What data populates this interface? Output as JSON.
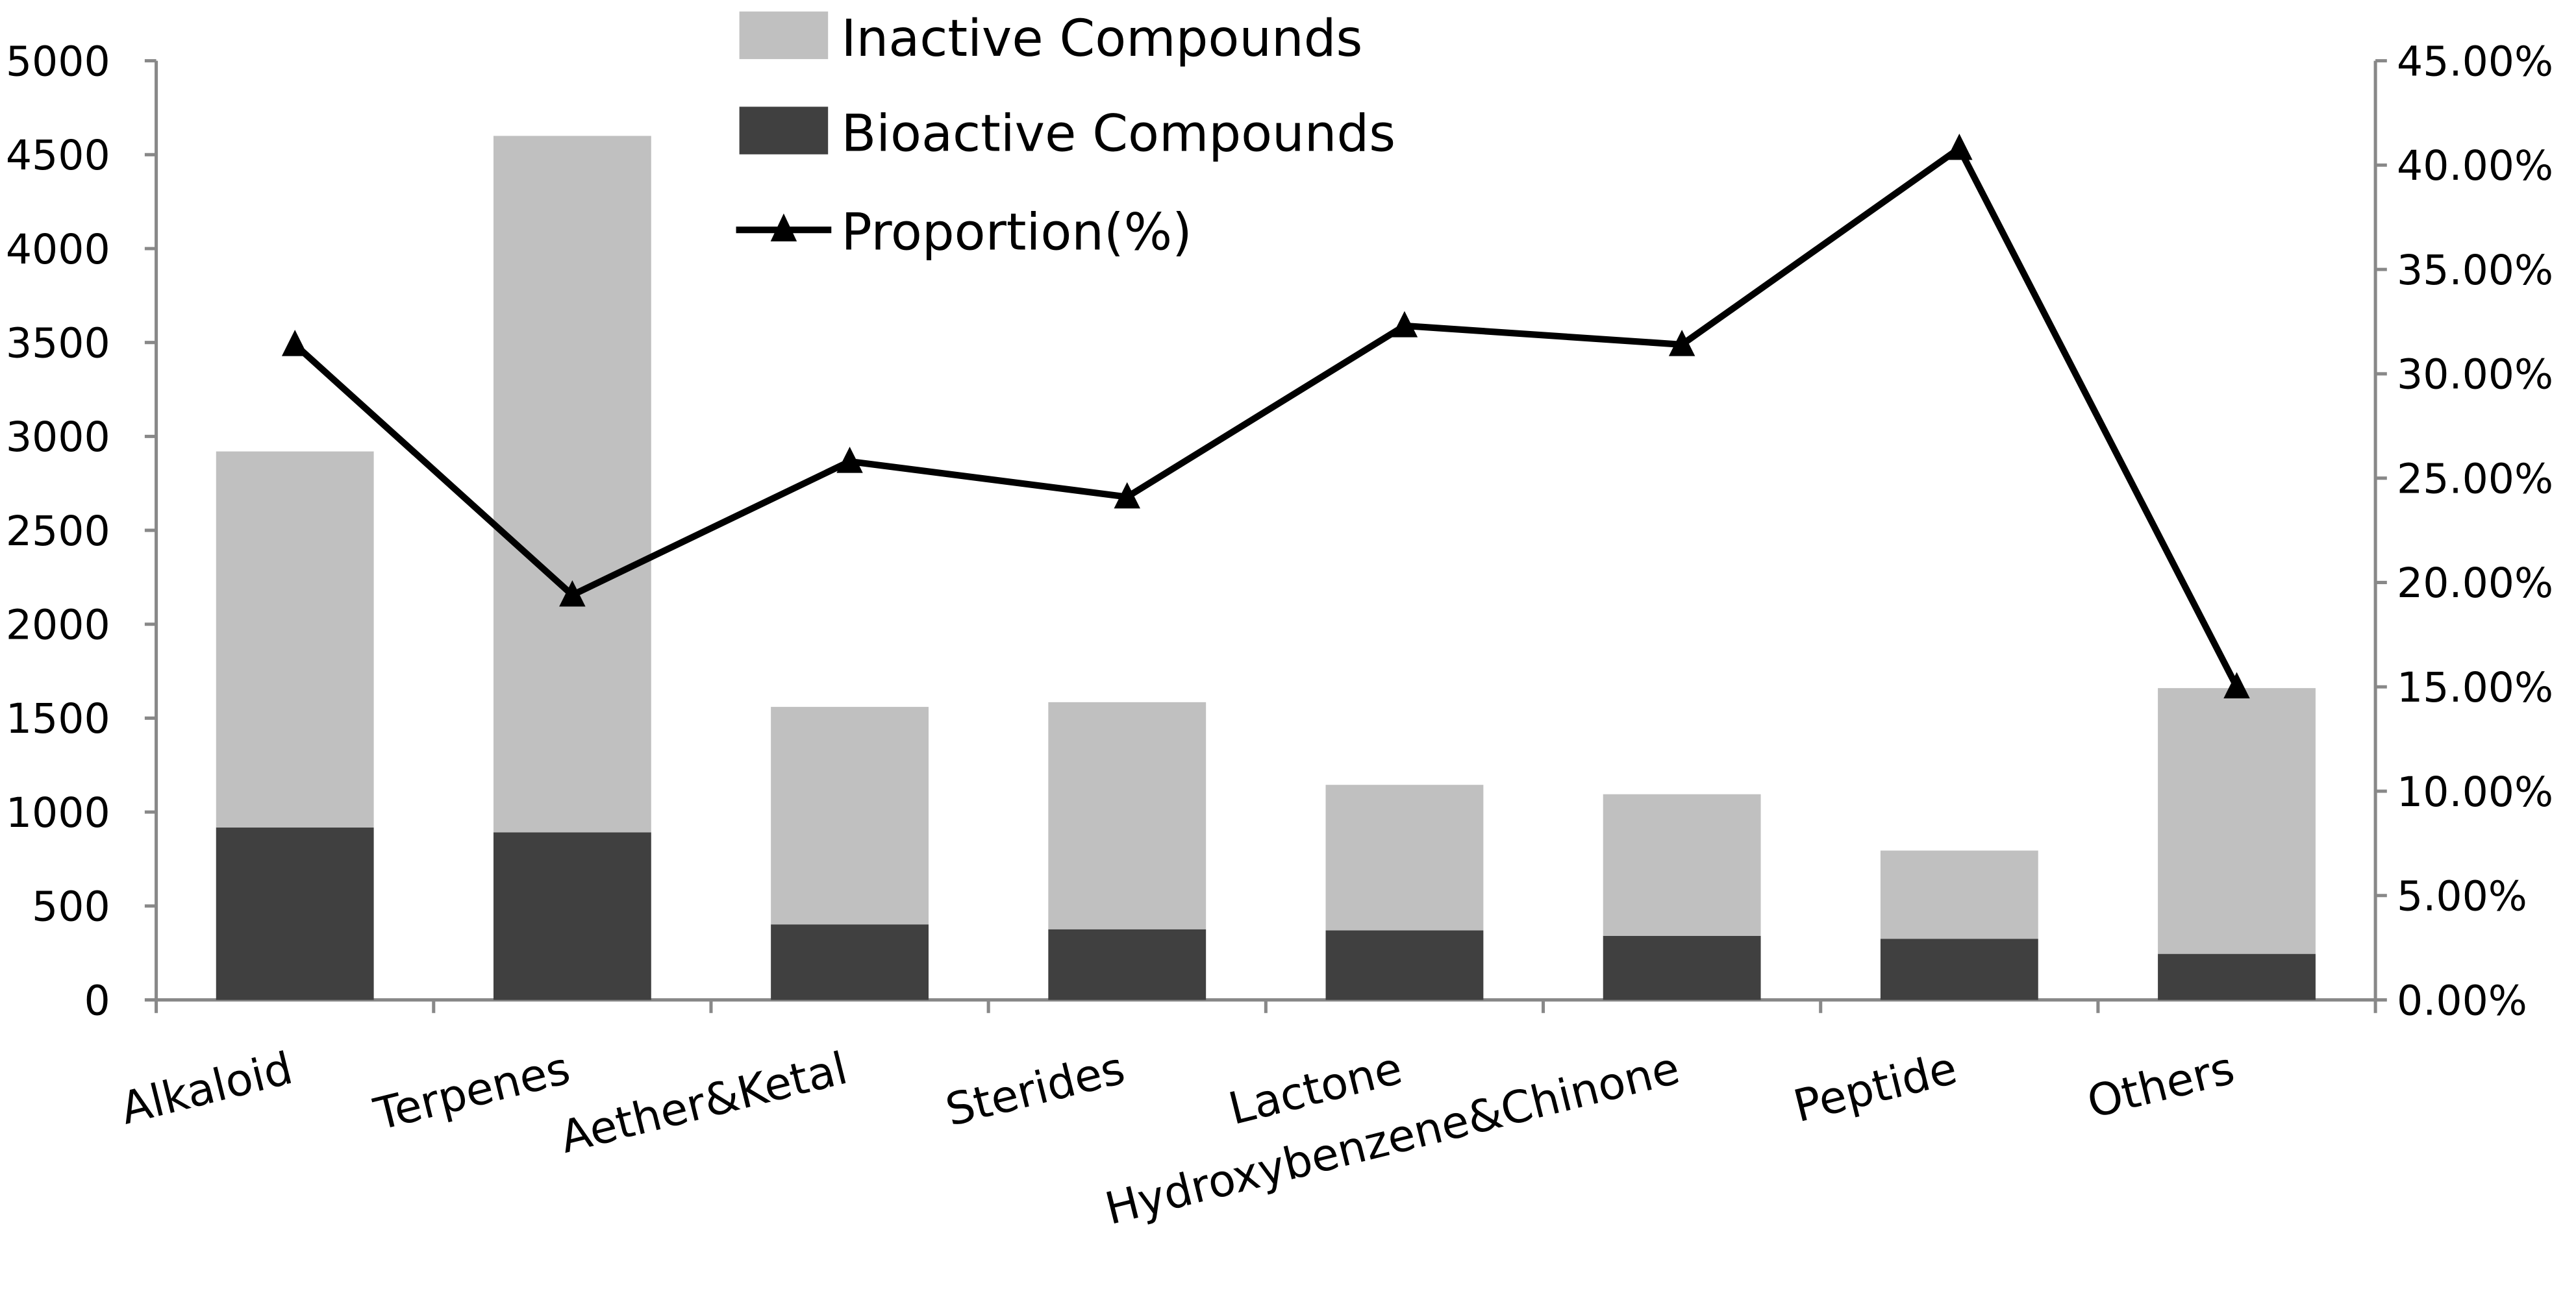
{
  "chart_data": {
    "type": "bar",
    "stacked": true,
    "categories": [
      "Alkaloid",
      "Terpenes",
      "Aether&Ketal",
      "Sterides",
      "Lactone",
      "Hydroxybenzene&Chinone",
      "Peptide",
      "Others"
    ],
    "series": [
      {
        "name": "Bioactive Compounds",
        "type": "bar",
        "axis": "left",
        "color": "#404040",
        "values": [
          918,
          892,
          402,
          376,
          370,
          341,
          325,
          245
        ]
      },
      {
        "name": "Inactive Compounds",
        "type": "bar",
        "axis": "left",
        "color": "#c0c0c0",
        "values": [
          2002,
          3708,
          1158,
          1209,
          775,
          754,
          470,
          1415
        ]
      },
      {
        "name": "Proportion(%)",
        "type": "line",
        "axis": "right",
        "color": "#000000",
        "marker": "triangle",
        "values": [
          31.4,
          19.4,
          25.8,
          24.1,
          32.3,
          31.4,
          40.8,
          15.0
        ]
      }
    ],
    "left_axis": {
      "ylim": [
        0,
        5000
      ],
      "ticks": [
        "0",
        "500",
        "1000",
        "1500",
        "2000",
        "2500",
        "3000",
        "3500",
        "4000",
        "4500",
        "5000"
      ]
    },
    "right_axis": {
      "ylim": [
        0,
        45
      ],
      "ticks": [
        "0.00%",
        "5.00%",
        "10.00%",
        "15.00%",
        "20.00%",
        "25.00%",
        "30.00%",
        "35.00%",
        "40.00%",
        "45.00%"
      ]
    },
    "legend": {
      "placement": "top-center",
      "entries": [
        "Inactive Compounds",
        "Bioactive Compounds",
        "Proportion(%)"
      ]
    },
    "grid": false
  }
}
